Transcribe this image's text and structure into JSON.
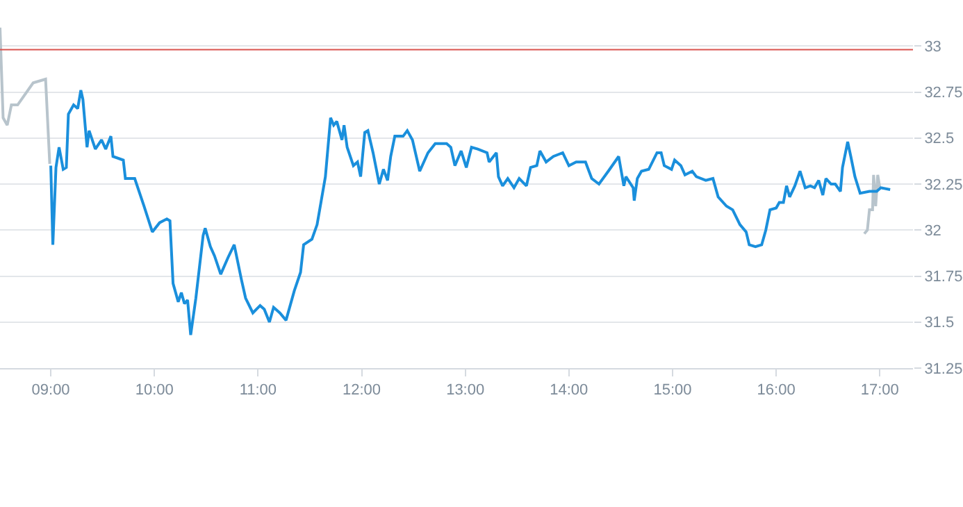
{
  "chart_data": {
    "type": "line",
    "xlim": [
      8.51,
      17.32
    ],
    "xticks": [
      {
        "value": 9,
        "label": "09:00"
      },
      {
        "value": 10,
        "label": "10:00"
      },
      {
        "value": 11,
        "label": "11:00"
      },
      {
        "value": 12,
        "label": "12:00"
      },
      {
        "value": 13,
        "label": "13:00"
      },
      {
        "value": 14,
        "label": "14:00"
      },
      {
        "value": 15,
        "label": "15:00"
      },
      {
        "value": 16,
        "label": "16:00"
      },
      {
        "value": 17,
        "label": "17:00"
      }
    ],
    "ylim": [
      31.25,
      33.25
    ],
    "yticks": [
      31.25,
      31.5,
      31.75,
      32,
      32.25,
      32.5,
      32.75,
      33
    ],
    "grid": "y",
    "marker": "none",
    "line_style": "solid",
    "ref_lines": [
      {
        "axis": "y",
        "value": 32.98,
        "color": "#d9534f"
      }
    ],
    "series": [
      {
        "color": "#b8c4cc",
        "x": [
          8.51,
          8.54,
          8.58,
          8.62,
          8.68,
          8.83,
          8.95,
          8.99
        ],
        "values": [
          33.1,
          32.61,
          32.57,
          32.68,
          32.68,
          32.8,
          32.82,
          32.36
        ]
      },
      {
        "color": "#b8c4cc",
        "x": [
          16.85,
          16.88,
          16.9,
          16.93,
          16.94,
          16.96,
          16.98,
          17.0
        ],
        "values": [
          31.98,
          32.0,
          32.11,
          32.11,
          32.3,
          32.13,
          32.3,
          32.23
        ]
      },
      {
        "color": "#1a8fdc",
        "x": [
          9.0,
          9.02,
          9.05,
          9.08,
          9.12,
          9.15,
          9.17,
          9.22,
          9.26,
          9.29,
          9.31,
          9.35,
          9.37,
          9.43,
          9.49,
          9.53,
          9.58,
          9.6,
          9.7,
          9.72,
          9.81,
          9.9,
          9.98,
          10.05,
          10.12,
          10.15,
          10.18,
          10.23,
          10.26,
          10.29,
          10.32,
          10.35,
          10.4,
          10.47,
          10.49,
          10.54,
          10.58,
          10.64,
          10.71,
          10.77,
          10.84,
          10.88,
          10.95,
          11.02,
          11.06,
          11.11,
          11.15,
          11.21,
          11.27,
          11.35,
          11.41,
          11.44,
          11.52,
          11.57,
          11.61,
          11.65,
          11.7,
          11.73,
          11.76,
          11.81,
          11.83,
          11.86,
          11.92,
          11.96,
          11.99,
          12.03,
          12.06,
          12.11,
          12.17,
          12.21,
          12.25,
          12.28,
          12.32,
          12.4,
          12.44,
          12.49,
          12.56,
          12.64,
          12.71,
          12.82,
          12.86,
          12.9,
          12.96,
          13.01,
          13.06,
          13.12,
          13.21,
          13.23,
          13.3,
          13.32,
          13.36,
          13.41,
          13.47,
          13.52,
          13.59,
          13.63,
          13.69,
          13.72,
          13.78,
          13.85,
          13.94,
          14.0,
          14.07,
          14.16,
          14.22,
          14.29,
          14.38,
          14.48,
          14.53,
          14.55,
          14.62,
          14.63,
          14.66,
          14.7,
          14.77,
          14.85,
          14.89,
          14.92,
          14.99,
          15.02,
          15.08,
          15.12,
          15.19,
          15.23,
          15.32,
          15.39,
          15.44,
          15.52,
          15.58,
          15.65,
          15.71,
          15.74,
          15.8,
          15.86,
          15.9,
          15.94,
          16.0,
          16.03,
          16.07,
          16.1,
          16.13,
          16.18,
          16.23,
          16.28,
          16.33,
          16.37,
          16.41,
          16.45,
          16.48,
          16.53,
          16.57,
          16.62,
          16.64,
          16.69,
          16.72,
          16.76,
          16.81,
          16.9,
          16.97,
          17.01,
          17.1
        ],
        "values": [
          32.35,
          31.92,
          32.34,
          32.45,
          32.33,
          32.34,
          32.63,
          32.68,
          32.66,
          32.76,
          32.71,
          32.45,
          32.54,
          32.44,
          32.49,
          32.44,
          32.51,
          32.4,
          32.38,
          32.28,
          32.28,
          32.13,
          31.99,
          32.04,
          32.06,
          32.05,
          31.71,
          31.61,
          31.66,
          31.6,
          31.62,
          31.43,
          31.63,
          31.97,
          32.01,
          31.91,
          31.86,
          31.76,
          31.85,
          31.92,
          31.73,
          31.63,
          31.55,
          31.59,
          31.57,
          31.5,
          31.58,
          31.55,
          31.51,
          31.67,
          31.77,
          31.92,
          31.95,
          32.03,
          32.16,
          32.29,
          32.61,
          32.57,
          32.59,
          32.49,
          32.57,
          32.45,
          32.35,
          32.37,
          32.29,
          32.53,
          32.54,
          32.42,
          32.25,
          32.33,
          32.27,
          32.4,
          32.51,
          32.51,
          32.54,
          32.49,
          32.32,
          32.42,
          32.47,
          32.47,
          32.45,
          32.35,
          32.43,
          32.34,
          32.45,
          32.44,
          32.42,
          32.37,
          32.42,
          32.29,
          32.24,
          32.28,
          32.23,
          32.28,
          32.24,
          32.34,
          32.35,
          32.43,
          32.37,
          32.4,
          32.42,
          32.35,
          32.37,
          32.37,
          32.28,
          32.25,
          32.32,
          32.4,
          32.24,
          32.29,
          32.23,
          32.16,
          32.28,
          32.32,
          32.33,
          32.42,
          32.42,
          32.35,
          32.33,
          32.38,
          32.35,
          32.3,
          32.32,
          32.29,
          32.27,
          32.28,
          32.18,
          32.13,
          32.11,
          32.03,
          31.99,
          31.92,
          31.91,
          31.92,
          32.0,
          32.11,
          32.12,
          32.15,
          32.15,
          32.24,
          32.18,
          32.24,
          32.32,
          32.23,
          32.24,
          32.23,
          32.27,
          32.19,
          32.28,
          32.25,
          32.25,
          32.21,
          32.34,
          32.48,
          32.4,
          32.29,
          32.2,
          32.21,
          32.21,
          32.23,
          32.22
        ]
      }
    ]
  }
}
